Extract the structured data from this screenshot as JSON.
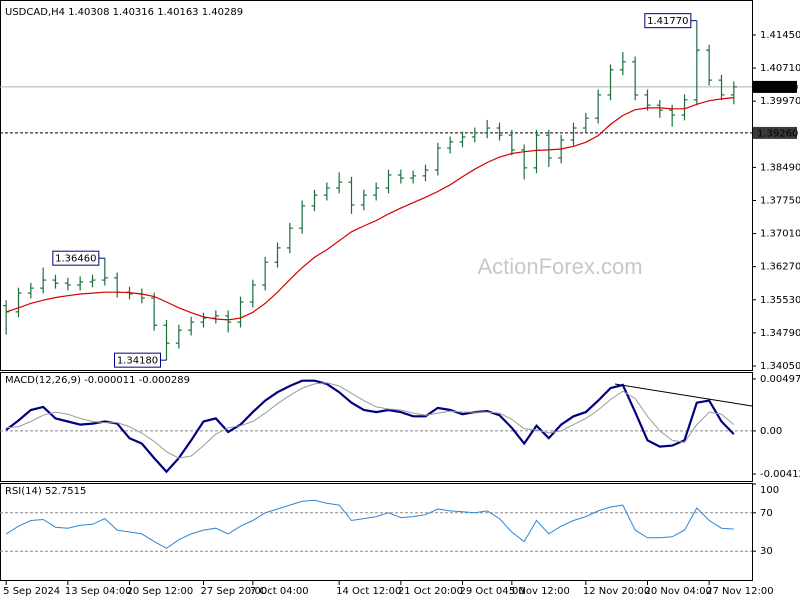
{
  "chart_data": [
    {
      "type": "ohlc",
      "title": "USDCAD,H4  1.40308 1.40316 1.40163 1.40289",
      "watermark": "ActionForex.com",
      "categories": [
        "5 Sep 2024",
        null,
        null,
        null,
        null,
        "13 Sep 04:00",
        null,
        null,
        null,
        null,
        "20 Sep 12:00",
        null,
        null,
        null,
        null,
        null,
        "27 Sep 20:00",
        null,
        null,
        null,
        "7 Oct 04:00",
        null,
        null,
        null,
        null,
        null,
        null,
        "14 Oct 12:00",
        null,
        null,
        null,
        null,
        "21 Oct 20:00",
        null,
        null,
        null,
        null,
        "29 Oct 04:00",
        null,
        null,
        null,
        "5 Nov 12:00",
        null,
        null,
        null,
        null,
        null,
        "12 Nov 20:00",
        null,
        null,
        null,
        null,
        "20 Nov 04:00",
        null,
        null,
        null,
        null,
        "27 Nov 12:00",
        null,
        null
      ],
      "open": [
        1.354,
        1.3526,
        1.3568,
        1.3579,
        1.3597,
        1.359,
        1.3586,
        1.3593,
        1.3597,
        1.3602,
        1.357,
        1.3566,
        1.3557,
        1.3496,
        1.3456,
        1.3485,
        1.3503,
        1.3512,
        1.3517,
        1.3503,
        1.3548,
        1.3586,
        1.3637,
        1.3669,
        1.3713,
        1.3763,
        1.3787,
        1.3803,
        1.3816,
        1.3765,
        1.3787,
        1.3803,
        1.3832,
        1.3825,
        1.383,
        1.3843,
        1.3892,
        1.3906,
        1.3917,
        1.3926,
        1.3937,
        1.3921,
        1.3888,
        1.3848,
        1.3921,
        1.387,
        1.391,
        1.3937,
        1.3959,
        1.4011,
        1.4067,
        1.4085,
        1.4011,
        1.3988,
        1.3977,
        1.3966,
        1.4,
        1.4111,
        1.4044,
        1.4011
      ],
      "high": [
        1.3552,
        1.358,
        1.3591,
        1.3625,
        1.3609,
        1.3602,
        1.3605,
        1.3609,
        1.3646,
        1.3614,
        1.3582,
        1.3578,
        1.3569,
        1.3508,
        1.3497,
        1.3515,
        1.3524,
        1.3529,
        1.3529,
        1.356,
        1.3598,
        1.3649,
        1.3681,
        1.3725,
        1.3775,
        1.3799,
        1.3815,
        1.3838,
        1.3828,
        1.3799,
        1.3815,
        1.3844,
        1.3844,
        1.3842,
        1.3855,
        1.3904,
        1.3918,
        1.3929,
        1.3938,
        1.3955,
        1.3949,
        1.3933,
        1.39,
        1.3933,
        1.3933,
        1.3922,
        1.3949,
        1.3971,
        1.4023,
        1.4079,
        1.4107,
        1.4097,
        1.4023,
        1.4,
        1.3989,
        1.4012,
        1.4177,
        1.4123,
        1.4056,
        1.4041
      ],
      "low": [
        1.3475,
        1.3514,
        1.3556,
        1.3567,
        1.3578,
        1.3574,
        1.3574,
        1.3581,
        1.3585,
        1.3558,
        1.3554,
        1.3545,
        1.3484,
        1.3418,
        1.3444,
        1.3473,
        1.3491,
        1.35,
        1.348,
        1.3491,
        1.3536,
        1.3574,
        1.3625,
        1.3657,
        1.3701,
        1.3751,
        1.3775,
        1.3791,
        1.3745,
        1.3753,
        1.3775,
        1.3791,
        1.3813,
        1.3813,
        1.3818,
        1.3831,
        1.388,
        1.3894,
        1.3905,
        1.3914,
        1.3909,
        1.3876,
        1.3822,
        1.3836,
        1.385,
        1.3858,
        1.3898,
        1.3925,
        1.3947,
        1.3999,
        1.4055,
        1.3999,
        1.3976,
        1.396,
        1.394,
        1.3954,
        1.3988,
        1.4032,
        1.3999,
        1.399
      ],
      "close": [
        1.3526,
        1.3568,
        1.3579,
        1.3597,
        1.359,
        1.3586,
        1.3593,
        1.3597,
        1.3602,
        1.357,
        1.3566,
        1.3557,
        1.3496,
        1.3456,
        1.3485,
        1.3503,
        1.3512,
        1.3517,
        1.3503,
        1.3548,
        1.3586,
        1.3637,
        1.3669,
        1.3713,
        1.3763,
        1.3787,
        1.3803,
        1.3816,
        1.3765,
        1.3787,
        1.3803,
        1.3832,
        1.3825,
        1.383,
        1.3843,
        1.3892,
        1.3906,
        1.3917,
        1.3926,
        1.3937,
        1.3921,
        1.3888,
        1.3848,
        1.3921,
        1.387,
        1.391,
        1.3937,
        1.3959,
        1.4011,
        1.4067,
        1.4085,
        1.4011,
        1.3988,
        1.3977,
        1.3966,
        1.4,
        1.4111,
        1.4044,
        1.4011,
        1.4029
      ],
      "color": "#1b6e3c",
      "ma": {
        "color": "#d40000",
        "values": [
          1.3526,
          1.3535,
          1.3545,
          1.3552,
          1.3558,
          1.3562,
          1.3566,
          1.3568,
          1.357,
          1.357,
          1.3569,
          1.3566,
          1.356,
          1.3548,
          1.3535,
          1.3524,
          1.3515,
          1.351,
          1.3508,
          1.3512,
          1.3525,
          1.3545,
          1.357,
          1.3598,
          1.3625,
          1.3648,
          1.3665,
          1.3685,
          1.3705,
          1.3718,
          1.373,
          1.3745,
          1.3758,
          1.377,
          1.3782,
          1.3795,
          1.381,
          1.3828,
          1.3845,
          1.386,
          1.3872,
          1.388,
          1.3884,
          1.3887,
          1.3888,
          1.389,
          1.3896,
          1.3905,
          1.392,
          1.3945,
          1.3965,
          1.3978,
          1.3982,
          1.3982,
          1.398,
          1.398,
          1.399,
          1.3998,
          1.4002,
          1.4005
        ]
      },
      "ylim": [
        1.3396,
        1.4212
      ],
      "yticks": [
        {
          "value": 1.4145,
          "label": "1.41450"
        },
        {
          "value": 1.4071,
          "label": "1.40710"
        },
        {
          "value": 1.3997,
          "label": "1.39970"
        },
        {
          "value": 1.3849,
          "label": "1.38490"
        },
        {
          "value": 1.3775,
          "label": "1.37750"
        },
        {
          "value": 1.3701,
          "label": "1.37010"
        },
        {
          "value": 1.3627,
          "label": "1.36270"
        },
        {
          "value": 1.3553,
          "label": "1.35530"
        },
        {
          "value": 1.3479,
          "label": "1.34790"
        },
        {
          "value": 1.3405,
          "label": "1.34050"
        }
      ],
      "price_line": {
        "value": 1.40289,
        "label": "1.40289"
      },
      "level_line": {
        "value": 1.3926,
        "label": "1.39260"
      },
      "annotations": [
        {
          "value": 1.4177,
          "label": "1.41770"
        },
        {
          "value": 1.3646,
          "label": "1.36460"
        },
        {
          "value": 1.3418,
          "label": "1.34180"
        }
      ],
      "grid": false
    },
    {
      "type": "line",
      "title": "MACD(12,26,9) -0.000011 -0.000289",
      "ylim": [
        -0.00479,
        0.00554
      ],
      "yticks": [
        0.004971,
        {
          "value": 0,
          "label": "0.00"
        },
        -0.004126
      ],
      "zero_line": true,
      "grid": false,
      "series": [
        {
          "color": "#000080",
          "width": 2.2,
          "values": [
            0.0001,
            0.001,
            0.002,
            0.0023,
            0.0012,
            0.0009,
            0.0006,
            0.0007,
            0.0009,
            0.0007,
            -0.0007,
            -0.0012,
            -0.0026,
            -0.0039,
            -0.0026,
            -0.0009,
            0.0009,
            0.0012,
            -0.0001,
            0.0006,
            0.0018,
            0.0029,
            0.0037,
            0.0043,
            0.0048,
            0.0048,
            0.0045,
            0.0037,
            0.0027,
            0.002,
            0.0018,
            0.002,
            0.0018,
            0.0014,
            0.0014,
            0.0022,
            0.002,
            0.0016,
            0.0018,
            0.0019,
            0.0015,
            0.0003,
            -0.0012,
            0.0005,
            -0.0007,
            0.0006,
            0.0014,
            0.0018,
            0.0029,
            0.0041,
            0.0044,
            0.0018,
            -0.0009,
            -0.0015,
            -0.0014,
            -0.0009,
            0.0027,
            0.0029,
            0.0009,
            -0.0003
          ]
        },
        {
          "color": "#9a9a9a",
          "width": 1,
          "values": [
            0.0003,
            0.0004,
            0.0009,
            0.0015,
            0.0018,
            0.0016,
            0.0012,
            0.0009,
            0.0008,
            0.0008,
            0.0004,
            -0.0002,
            -0.001,
            -0.002,
            -0.0026,
            -0.0024,
            -0.0014,
            -0.0003,
            0.0003,
            0.0005,
            0.0009,
            0.0017,
            0.0026,
            0.0034,
            0.0041,
            0.0045,
            0.0046,
            0.0043,
            0.0036,
            0.0029,
            0.0023,
            0.0021,
            0.002,
            0.0017,
            0.0015,
            0.0017,
            0.0019,
            0.0018,
            0.0018,
            0.0018,
            0.0017,
            0.0011,
            0.0002,
            0.0001,
            -0.0002,
            0.0,
            0.0006,
            0.0012,
            0.002,
            0.003,
            0.0038,
            0.0031,
            0.0014,
            0.0,
            -0.0009,
            -0.0011,
            0.0006,
            0.0018,
            0.0016,
            0.0006
          ]
        }
      ]
    },
    {
      "type": "line",
      "title": "RSI(14) 52.7515",
      "ylim": [
        0,
        100
      ],
      "yticks": [
        100,
        70,
        30
      ],
      "grid": "dashed",
      "series": [
        {
          "color": "#2f86d8",
          "width": 1,
          "values": [
            48,
            56,
            62,
            63,
            55,
            54,
            57,
            58,
            64,
            52,
            50,
            48,
            40,
            33,
            42,
            48,
            52,
            54,
            48,
            56,
            62,
            70,
            74,
            78,
            82,
            83,
            80,
            78,
            62,
            64,
            66,
            70,
            65,
            66,
            68,
            74,
            72,
            71,
            70,
            72,
            64,
            50,
            40,
            62,
            48,
            56,
            62,
            66,
            72,
            76,
            78,
            52,
            44,
            44,
            45,
            52,
            75,
            62,
            54,
            53
          ]
        }
      ]
    }
  ]
}
